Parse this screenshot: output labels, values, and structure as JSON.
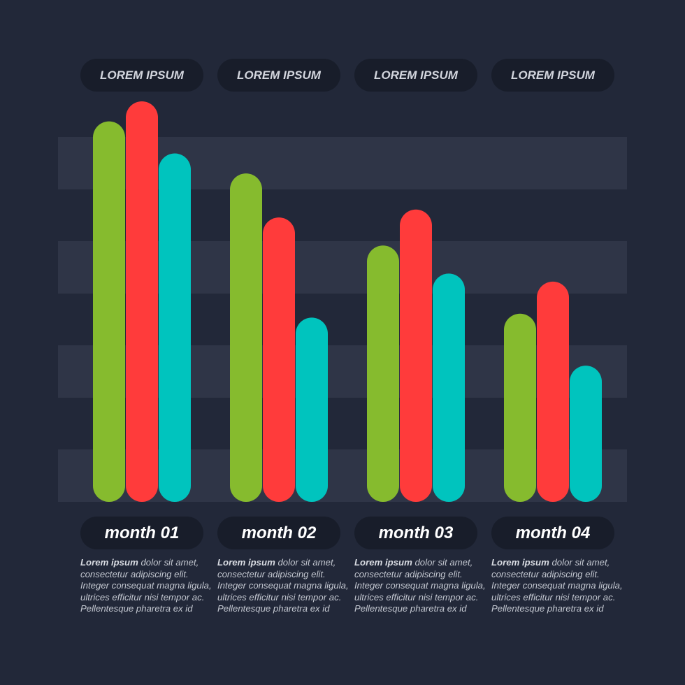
{
  "colors": {
    "background": "#222839",
    "band": "#2f3547",
    "pill": "#181d2a",
    "series": [
      "#86bb2e",
      "#ff3b3b",
      "#00c4be"
    ]
  },
  "chart_data": {
    "type": "bar",
    "title": "",
    "xlabel": "",
    "ylabel": "",
    "ylim": [
      0,
      100
    ],
    "grid": "alternating horizontal bands",
    "header_labels": [
      "LOREM IPSUM",
      "LOREM IPSUM",
      "LOREM IPSUM",
      "LOREM IPSUM"
    ],
    "categories": [
      "month 01",
      "month 02",
      "month 03",
      "month 04"
    ],
    "series": [
      {
        "values": [
          95,
          82,
          64,
          47
        ]
      },
      {
        "values": [
          100,
          71,
          73,
          55
        ]
      },
      {
        "values": [
          87,
          46,
          57,
          34
        ]
      }
    ]
  },
  "descriptions": [
    {
      "lead": "Lorem ipsum",
      "text": " dolor sit amet, consectetur adipiscing elit. Integer consequat magna ligula, ultrices efficitur nisi tempor ac. Pellentesque pharetra ex id"
    },
    {
      "lead": "Lorem ipsum",
      "text": " dolor sit amet, consectetur adipiscing elit. Integer consequat magna ligula, ultrices efficitur nisi tempor ac. Pellentesque pharetra ex id"
    },
    {
      "lead": "Lorem ipsum",
      "text": " dolor sit amet, consectetur adipiscing elit. Integer consequat magna ligula, ultrices efficitur nisi tempor ac. Pellentesque pharetra ex id"
    },
    {
      "lead": "Lorem ipsum",
      "text": " dolor sit amet, consectetur adipiscing elit. Integer consequat magna ligula, ultrices efficitur nisi tempor ac. Pellentesque pharetra ex id"
    }
  ]
}
